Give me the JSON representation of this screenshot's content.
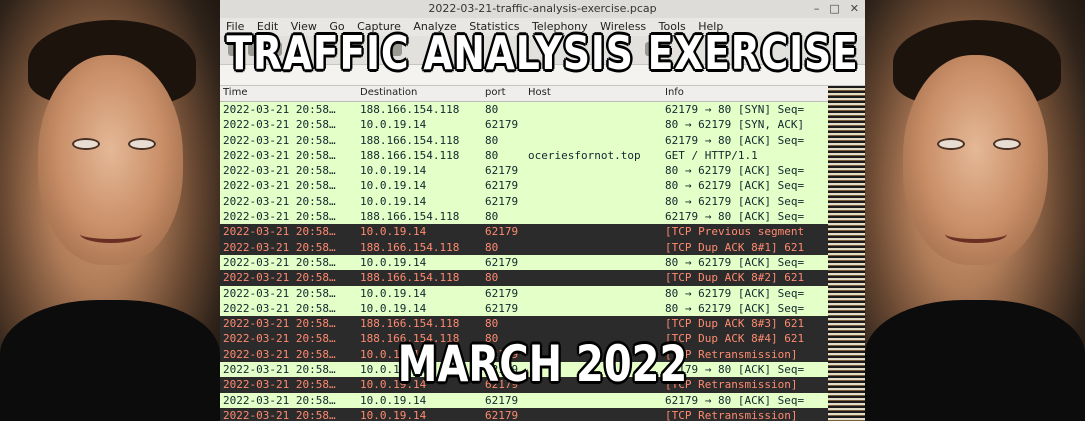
{
  "window": {
    "title": "2022-03-21-traffic-analysis-exercise.pcap",
    "menus": [
      "File",
      "Edit",
      "View",
      "Go",
      "Capture",
      "Analyze",
      "Statistics",
      "Telephony",
      "Wireless",
      "Tools",
      "Help"
    ]
  },
  "columns": {
    "time": "Time",
    "destination": "Destination",
    "port": "port",
    "host": "Host",
    "info": "Info"
  },
  "packets": [
    {
      "time": "2022-03-21 20:58…",
      "dst": "188.166.154.118",
      "port": "80",
      "host": "",
      "info": "62179 → 80 [SYN] Seq=",
      "style": "ok"
    },
    {
      "time": "2022-03-21 20:58…",
      "dst": "10.0.19.14",
      "port": "62179",
      "host": "",
      "info": "80 → 62179 [SYN, ACK]",
      "style": "ok"
    },
    {
      "time": "2022-03-21 20:58…",
      "dst": "188.166.154.118",
      "port": "80",
      "host": "",
      "info": "62179 → 80 [ACK] Seq=",
      "style": "ok"
    },
    {
      "time": "2022-03-21 20:58…",
      "dst": "188.166.154.118",
      "port": "80",
      "host": "oceriesfornot.top",
      "info": "GET / HTTP/1.1",
      "style": "ok"
    },
    {
      "time": "2022-03-21 20:58…",
      "dst": "10.0.19.14",
      "port": "62179",
      "host": "",
      "info": "80 → 62179 [ACK] Seq=",
      "style": "ok"
    },
    {
      "time": "2022-03-21 20:58…",
      "dst": "10.0.19.14",
      "port": "62179",
      "host": "",
      "info": "80 → 62179 [ACK] Seq=",
      "style": "ok"
    },
    {
      "time": "2022-03-21 20:58…",
      "dst": "10.0.19.14",
      "port": "62179",
      "host": "",
      "info": "80 → 62179 [ACK] Seq=",
      "style": "ok"
    },
    {
      "time": "2022-03-21 20:58…",
      "dst": "188.166.154.118",
      "port": "80",
      "host": "",
      "info": "62179 → 80 [ACK] Seq=",
      "style": "ok"
    },
    {
      "time": "2022-03-21 20:58…",
      "dst": "10.0.19.14",
      "port": "62179",
      "host": "",
      "info": "[TCP Previous segment",
      "style": "bad"
    },
    {
      "time": "2022-03-21 20:58…",
      "dst": "188.166.154.118",
      "port": "80",
      "host": "",
      "info": "[TCP Dup ACK 8#1] 621",
      "style": "bad"
    },
    {
      "time": "2022-03-21 20:58…",
      "dst": "10.0.19.14",
      "port": "62179",
      "host": "",
      "info": "80 → 62179 [ACK] Seq=",
      "style": "ok"
    },
    {
      "time": "2022-03-21 20:58…",
      "dst": "188.166.154.118",
      "port": "80",
      "host": "",
      "info": "[TCP Dup ACK 8#2] 621",
      "style": "bad"
    },
    {
      "time": "2022-03-21 20:58…",
      "dst": "10.0.19.14",
      "port": "62179",
      "host": "",
      "info": "80 → 62179 [ACK] Seq=",
      "style": "ok"
    },
    {
      "time": "2022-03-21 20:58…",
      "dst": "10.0.19.14",
      "port": "62179",
      "host": "",
      "info": "80 → 62179 [ACK] Seq=",
      "style": "ok"
    },
    {
      "time": "2022-03-21 20:58…",
      "dst": "188.166.154.118",
      "port": "80",
      "host": "",
      "info": "[TCP Dup ACK 8#3] 621",
      "style": "bad"
    },
    {
      "time": "2022-03-21 20:58…",
      "dst": "188.166.154.118",
      "port": "80",
      "host": "",
      "info": "[TCP Dup ACK 8#4] 621",
      "style": "bad"
    },
    {
      "time": "2022-03-21 20:58…",
      "dst": "10.0.19.14",
      "port": "62179",
      "host": "",
      "info": "[TCP Retransmission]",
      "style": "bad"
    },
    {
      "time": "2022-03-21 20:58…",
      "dst": "10.0.19.14",
      "port": "62179",
      "host": "",
      "info": "62179 → 80 [ACK] Seq=",
      "style": "ok"
    },
    {
      "time": "2022-03-21 20:58…",
      "dst": "10.0.19.14",
      "port": "62179",
      "host": "",
      "info": "[TCP Retransmission]",
      "style": "bad"
    },
    {
      "time": "2022-03-21 20:58…",
      "dst": "10.0.19.14",
      "port": "62179",
      "host": "",
      "info": "62179 → 80 [ACK] Seq=",
      "style": "ok"
    },
    {
      "time": "2022-03-21 20:58…",
      "dst": "10.0.19.14",
      "port": "62179",
      "host": "",
      "info": "[TCP Retransmission]",
      "style": "bad"
    }
  ],
  "overlay": {
    "title": "TRAFFIC ANALYSIS EXERCISE",
    "subtitle": "MARCH 2022"
  },
  "colors": {
    "normal_row": "#e4ffc7",
    "bad_row_bg": "#2b2b2b",
    "bad_row_text": "#ff8a70"
  }
}
